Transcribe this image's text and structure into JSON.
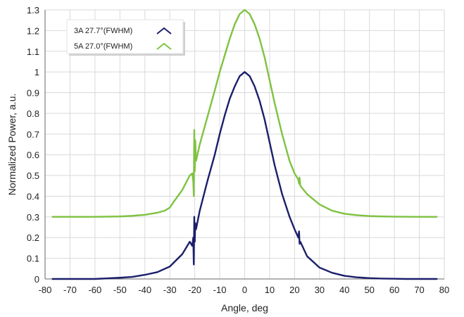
{
  "colors": {
    "series_3A": "#1b1f6b",
    "series_5A": "#7fc241",
    "grid": "#d9d9d9",
    "axis": "#666666",
    "background": "#ffffff"
  },
  "chart_data": {
    "type": "line",
    "title": "",
    "xlabel": "Angle, deg",
    "ylabel": "Normalized Power, a.u.",
    "xlim": [
      -80,
      80
    ],
    "ylim": [
      0,
      1.3
    ],
    "xticks": [
      -80,
      -70,
      -60,
      -50,
      -40,
      -30,
      -20,
      -10,
      0,
      10,
      20,
      30,
      40,
      50,
      60,
      70,
      80
    ],
    "yticks": [
      0,
      0.1,
      0.2,
      0.3,
      0.4,
      0.5,
      0.6,
      0.7,
      0.8,
      0.9,
      1,
      1.1,
      1.2,
      1.3
    ],
    "xtick_labels": [
      "-80",
      "-70",
      "-60",
      "-50",
      "-40",
      "-30",
      "-20",
      "-10",
      "0",
      "10",
      "20",
      "30",
      "40",
      "50",
      "60",
      "70",
      "80"
    ],
    "ytick_labels": [
      "0",
      "0.1",
      "0.2",
      "0.3",
      "0.4",
      "0.5",
      "0.6",
      "0.7",
      "0.8",
      "0.9",
      "1",
      "1.1",
      "1.2",
      "1.3"
    ],
    "grid": true,
    "legend_position": "top-left",
    "series": [
      {
        "name": "3A 27.7°(FWHM)",
        "x": [
          -77,
          -60,
          -55,
          -50,
          -45,
          -40,
          -35,
          -30,
          -25,
          -22,
          -21,
          -20.6,
          -20.4,
          -20.2,
          -20,
          -19.8,
          -19.5,
          -18,
          -15,
          -12,
          -10,
          -8,
          -6,
          -4,
          -2,
          0,
          2,
          4,
          6,
          8,
          10,
          12,
          15,
          18,
          20,
          21.5,
          21.8,
          22,
          22.3,
          25,
          30,
          35,
          40,
          45,
          50,
          55,
          60,
          65,
          70,
          77
        ],
        "y": [
          0,
          0,
          0.003,
          0.006,
          0.01,
          0.02,
          0.033,
          0.06,
          0.12,
          0.18,
          0.16,
          0.2,
          0.07,
          0.3,
          0.18,
          0.27,
          0.24,
          0.33,
          0.47,
          0.6,
          0.7,
          0.79,
          0.87,
          0.93,
          0.98,
          1.0,
          0.98,
          0.93,
          0.86,
          0.77,
          0.66,
          0.55,
          0.41,
          0.3,
          0.24,
          0.2,
          0.23,
          0.17,
          0.18,
          0.11,
          0.055,
          0.03,
          0.015,
          0.008,
          0.004,
          0.002,
          0.001,
          0,
          0,
          0
        ],
        "color": "#1b1f6b"
      },
      {
        "name": "5A 27.0°(FWHM)",
        "x": [
          -77,
          -60,
          -50,
          -45,
          -40,
          -35,
          -32,
          -30,
          -28,
          -25,
          -22,
          -21,
          -20.6,
          -20.4,
          -20.2,
          -20,
          -19.8,
          -19.5,
          -18,
          -15,
          -12,
          -10,
          -8,
          -6,
          -4,
          -2,
          0,
          2,
          4,
          6,
          8,
          10,
          12,
          15,
          18,
          20,
          21.5,
          21.8,
          22,
          22.3,
          25,
          30,
          35,
          40,
          45,
          50,
          55,
          60,
          70,
          77
        ],
        "y": [
          0.3,
          0.3,
          0.302,
          0.305,
          0.31,
          0.32,
          0.33,
          0.345,
          0.38,
          0.43,
          0.5,
          0.51,
          0.47,
          0.4,
          0.72,
          0.52,
          0.67,
          0.57,
          0.65,
          0.78,
          0.91,
          1.0,
          1.08,
          1.16,
          1.23,
          1.28,
          1.3,
          1.28,
          1.23,
          1.16,
          1.07,
          0.96,
          0.85,
          0.7,
          0.57,
          0.51,
          0.48,
          0.46,
          0.49,
          0.45,
          0.41,
          0.36,
          0.33,
          0.315,
          0.308,
          0.304,
          0.302,
          0.301,
          0.3,
          0.3
        ],
        "color": "#7fc241"
      }
    ]
  }
}
